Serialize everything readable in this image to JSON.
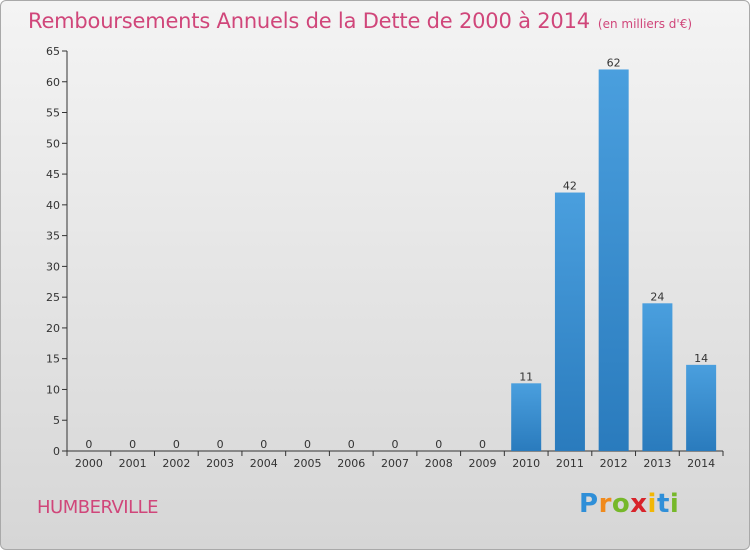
{
  "title": "Remboursements Annuels de la Dette de 2000 à 2014",
  "unit": "(en milliers d'€)",
  "town": "HUMBERVILLE",
  "logo": {
    "letters": [
      "P",
      "r",
      "o",
      "x",
      "i",
      "t",
      "i"
    ],
    "colors": [
      "#2f8fd8",
      "#f08a1c",
      "#76b82a",
      "#d8232a",
      "#f2b705",
      "#2f8fd8",
      "#76b82a"
    ]
  },
  "colors": {
    "bar": "#4a9fde",
    "bar_dark": "#2a7bbd",
    "text": "#d0467a"
  },
  "chart_data": {
    "type": "bar",
    "categories": [
      "2000",
      "2001",
      "2002",
      "2003",
      "2004",
      "2005",
      "2006",
      "2007",
      "2008",
      "2009",
      "2010",
      "2011",
      "2012",
      "2013",
      "2014"
    ],
    "values": [
      0,
      0,
      0,
      0,
      0,
      0,
      0,
      0,
      0,
      0,
      11,
      42,
      62,
      24,
      14
    ],
    "ylim": [
      0,
      65
    ],
    "yticks": [
      0,
      5,
      10,
      15,
      20,
      25,
      30,
      35,
      40,
      45,
      50,
      55,
      60,
      65
    ],
    "grid": false,
    "legend": "none"
  }
}
